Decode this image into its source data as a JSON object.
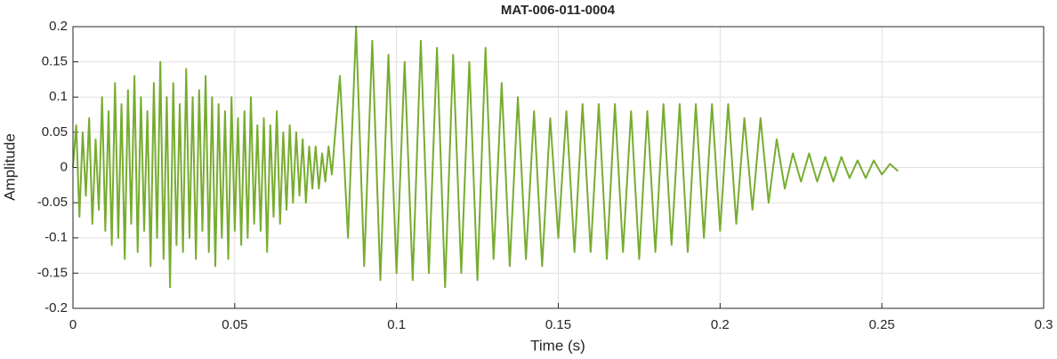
{
  "chart_data": {
    "type": "line",
    "title": "MAT-006-011-0004",
    "xlabel": "Time (s)",
    "ylabel": "Amplitude",
    "color": "#77ac30",
    "grid": true,
    "xlim": [
      0,
      0.3
    ],
    "xticks": [
      0,
      0.05,
      0.1,
      0.15,
      0.2,
      0.25,
      0.3
    ],
    "ylim": [
      -0.2,
      0.2
    ],
    "yticks": [
      -0.2,
      -0.15,
      -0.1,
      -0.05,
      0,
      0.05,
      0.1,
      0.15,
      0.2
    ],
    "x": [
      0,
      0.001,
      0.002,
      0.003,
      0.004,
      0.005,
      0.006,
      0.007,
      0.008,
      0.009,
      0.01,
      0.011,
      0.012,
      0.013,
      0.014,
      0.015,
      0.016,
      0.017,
      0.018,
      0.019,
      0.02,
      0.021,
      0.022,
      0.023,
      0.024,
      0.025,
      0.026,
      0.027,
      0.028,
      0.029,
      0.03,
      0.031,
      0.032,
      0.033,
      0.034,
      0.035,
      0.036,
      0.037,
      0.038,
      0.039,
      0.04,
      0.041,
      0.042,
      0.043,
      0.044,
      0.045,
      0.046,
      0.047,
      0.048,
      0.049,
      0.05,
      0.051,
      0.052,
      0.053,
      0.054,
      0.055,
      0.056,
      0.057,
      0.058,
      0.059,
      0.06,
      0.061,
      0.062,
      0.063,
      0.064,
      0.065,
      0.066,
      0.067,
      0.068,
      0.069,
      0.07,
      0.071,
      0.072,
      0.073,
      0.074,
      0.075,
      0.076,
      0.077,
      0.078,
      0.079,
      0.08,
      0.0825,
      0.085,
      0.0875,
      0.09,
      0.0925,
      0.095,
      0.0975,
      0.1,
      0.1025,
      0.105,
      0.1075,
      0.11,
      0.1125,
      0.115,
      0.1175,
      0.12,
      0.1225,
      0.125,
      0.1275,
      0.13,
      0.1325,
      0.135,
      0.1375,
      0.14,
      0.1425,
      0.145,
      0.1475,
      0.15,
      0.1525,
      0.155,
      0.1575,
      0.16,
      0.1625,
      0.165,
      0.1675,
      0.17,
      0.1725,
      0.175,
      0.1775,
      0.18,
      0.1825,
      0.185,
      0.1875,
      0.19,
      0.1925,
      0.195,
      0.1975,
      0.2,
      0.2025,
      0.205,
      0.2075,
      0.21,
      0.2125,
      0.215,
      0.2175,
      0.22,
      0.2225,
      0.225,
      0.2275,
      0.23,
      0.2325,
      0.235,
      0.2375,
      0.24,
      0.2425,
      0.245,
      0.2475,
      0.25,
      0.2525,
      0.255
    ],
    "values": [
      0,
      0.06,
      -0.07,
      0.05,
      -0.04,
      0.07,
      -0.08,
      0.04,
      -0.06,
      0.1,
      -0.09,
      0.08,
      -0.11,
      0.12,
      -0.1,
      0.09,
      -0.13,
      0.11,
      -0.08,
      0.13,
      -0.12,
      0.1,
      -0.09,
      0.08,
      -0.14,
      0.12,
      -0.1,
      0.15,
      -0.13,
      0.1,
      -0.17,
      0.12,
      -0.11,
      0.09,
      -0.12,
      0.14,
      -0.1,
      0.1,
      -0.13,
      0.11,
      -0.09,
      0.13,
      -0.12,
      0.1,
      -0.14,
      0.09,
      -0.1,
      0.08,
      -0.13,
      0.1,
      -0.09,
      0.07,
      -0.11,
      0.08,
      -0.1,
      0.1,
      -0.08,
      0.06,
      -0.09,
      0.07,
      -0.12,
      0.06,
      -0.07,
      0.08,
      -0.08,
      0.05,
      -0.06,
      0.06,
      -0.05,
      0.05,
      -0.04,
      0.04,
      -0.05,
      0.03,
      -0.03,
      0.03,
      -0.03,
      0.02,
      -0.02,
      0.03,
      -0.01,
      0.13,
      -0.1,
      0.2,
      -0.14,
      0.18,
      -0.16,
      0.16,
      -0.15,
      0.15,
      -0.16,
      0.18,
      -0.15,
      0.17,
      -0.17,
      0.16,
      -0.15,
      0.15,
      -0.16,
      0.17,
      -0.13,
      0.12,
      -0.14,
      0.1,
      -0.13,
      0.08,
      -0.14,
      0.07,
      -0.1,
      0.08,
      -0.12,
      0.09,
      -0.12,
      0.09,
      -0.13,
      0.09,
      -0.12,
      0.08,
      -0.13,
      0.08,
      -0.12,
      0.09,
      -0.11,
      0.09,
      -0.12,
      0.09,
      -0.1,
      0.09,
      -0.09,
      0.09,
      -0.08,
      0.07,
      -0.06,
      0.07,
      -0.05,
      0.04,
      -0.03,
      0.02,
      -0.02,
      0.02,
      -0.02,
      0.015,
      -0.02,
      0.015,
      -0.015,
      0.01,
      -0.015,
      0.01,
      -0.01,
      0.005,
      -0.005
    ]
  }
}
